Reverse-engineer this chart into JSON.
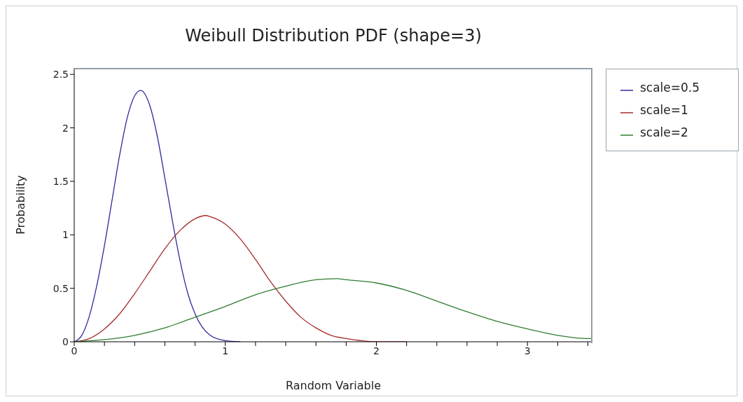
{
  "chart_data": {
    "type": "line",
    "title": "Weibull Distribution PDF (shape=3)",
    "xlabel": "Random Variable",
    "ylabel": "Probability",
    "xlim": [
      0,
      3.43
    ],
    "xticks": [
      0,
      {
        "value": 0.2,
        "label": null
      },
      {
        "value": 0.4,
        "label": null
      },
      {
        "value": 0.6,
        "label": null
      },
      {
        "value": 0.8,
        "label": null
      },
      1,
      {
        "value": 1.2,
        "label": null
      },
      {
        "value": 1.4,
        "label": null
      },
      {
        "value": 1.6,
        "label": null
      },
      {
        "value": 1.8,
        "label": null
      },
      2,
      {
        "value": 2.2,
        "label": null
      },
      {
        "value": 2.4,
        "label": null
      },
      {
        "value": 2.6,
        "label": null
      },
      {
        "value": 2.8,
        "label": null
      },
      3,
      {
        "value": 3.2,
        "label": null
      },
      {
        "value": 3.4,
        "label": null
      }
    ],
    "ylim": [
      0,
      2.56
    ],
    "yticks": [
      0,
      0.5,
      1,
      1.5,
      2,
      2.5
    ],
    "grid": false,
    "legend": "top right",
    "marker": "none",
    "line_style": "solid",
    "series": [
      {
        "name": "scale=0.5",
        "color": "#2b2b9e",
        "x": [
          0,
          0.05,
          0.1,
          0.15,
          0.2,
          0.25,
          0.3,
          0.35,
          0.4,
          0.44,
          0.5,
          0.55,
          0.6,
          0.65,
          0.7,
          0.75,
          0.8,
          0.9,
          1.0,
          1.1
        ],
        "values": [
          0,
          0.06,
          0.24,
          0.53,
          0.9,
          1.32,
          1.74,
          2.09,
          2.3,
          2.35,
          2.21,
          1.92,
          1.53,
          1.13,
          0.76,
          0.46,
          0.26,
          0.06,
          0.01,
          0
        ]
      },
      {
        "name": "scale=1",
        "color": "#a52a2a",
        "x": [
          0,
          0.1,
          0.2,
          0.3,
          0.4,
          0.5,
          0.6,
          0.7,
          0.8,
          0.87,
          0.9,
          1.0,
          1.1,
          1.2,
          1.3,
          1.4,
          1.5,
          1.6,
          1.7,
          1.8,
          1.9,
          2.0,
          2.2
        ],
        "values": [
          0,
          0.03,
          0.12,
          0.26,
          0.45,
          0.66,
          0.87,
          1.04,
          1.15,
          1.18,
          1.17,
          1.1,
          0.96,
          0.77,
          0.56,
          0.38,
          0.23,
          0.13,
          0.06,
          0.03,
          0.01,
          0,
          0
        ]
      },
      {
        "name": "scale=2",
        "color": "#2e7d2e",
        "x": [
          0,
          0.2,
          0.4,
          0.6,
          0.8,
          1.0,
          1.2,
          1.4,
          1.6,
          1.74,
          1.8,
          2.0,
          2.2,
          2.4,
          2.6,
          2.8,
          3.0,
          3.2,
          3.4,
          3.43
        ],
        "values": [
          0,
          0.02,
          0.06,
          0.13,
          0.23,
          0.33,
          0.44,
          0.52,
          0.58,
          0.59,
          0.58,
          0.55,
          0.48,
          0.38,
          0.28,
          0.19,
          0.12,
          0.06,
          0.03,
          0.03
        ]
      }
    ]
  }
}
